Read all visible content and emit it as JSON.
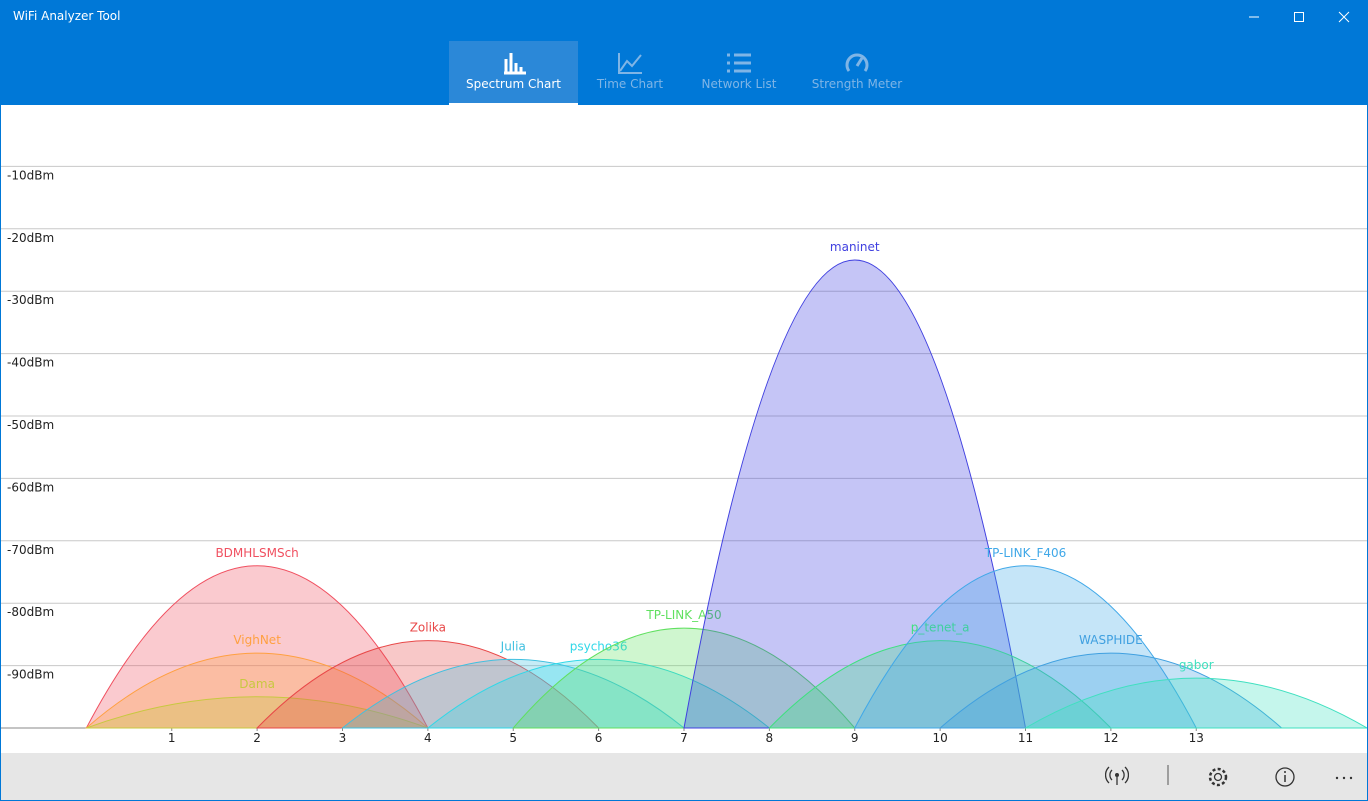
{
  "window": {
    "title": "WiFi Analyzer Tool"
  },
  "tabs": [
    "Spectrum Chart",
    "Time Chart",
    "Network List",
    "Strength Meter"
  ],
  "chart_data": {
    "type": "area",
    "xlim": [
      -1,
      15
    ],
    "xticks": [
      1,
      2,
      3,
      4,
      5,
      6,
      7,
      8,
      9,
      10,
      11,
      12,
      13
    ],
    "ylim": [
      -100,
      0
    ],
    "yticks": [
      {
        "value": -10,
        "label": "-10dBm"
      },
      {
        "value": -20,
        "label": "-20dBm"
      },
      {
        "value": -30,
        "label": "-30dBm"
      },
      {
        "value": -40,
        "label": "-40dBm"
      },
      {
        "value": -50,
        "label": "-50dBm"
      },
      {
        "value": -60,
        "label": "-60dBm"
      },
      {
        "value": -70,
        "label": "-70dBm"
      },
      {
        "value": -80,
        "label": "-80dBm"
      },
      {
        "value": -90,
        "label": "-90dBm"
      }
    ],
    "grid": true,
    "series": [
      {
        "name": "BDMHLSMSch",
        "color": "#f05060",
        "channel": 2,
        "value": -74
      },
      {
        "name": "VighNet",
        "color": "#ffa040",
        "channel": 2,
        "value": -88
      },
      {
        "name": "Dama",
        "color": "#c8c840",
        "channel": 2,
        "value": -95
      },
      {
        "name": "Zolika",
        "color": "#e84848",
        "channel": 4,
        "value": -86
      },
      {
        "name": "Julia",
        "color": "#40c0e0",
        "channel": 5,
        "value": -89
      },
      {
        "name": "psycho36",
        "color": "#30d8e8",
        "channel": 6,
        "value": -89
      },
      {
        "name": "TP-LINK_A50",
        "color": "#60e060",
        "channel": 7,
        "value": -84
      },
      {
        "name": "maninet",
        "color": "#4040e0",
        "channel": 9,
        "value": -25
      },
      {
        "name": "p_tenet_a",
        "color": "#40e080",
        "channel": 10,
        "value": -86
      },
      {
        "name": "TP-LINK_F406",
        "color": "#40a8e8",
        "channel": 11,
        "value": -74
      },
      {
        "name": "WASPHIDE",
        "color": "#40a0e0",
        "channel": 12,
        "value": -88
      },
      {
        "name": "gabor",
        "color": "#40e0c0",
        "channel": 13,
        "value": -92
      }
    ]
  }
}
